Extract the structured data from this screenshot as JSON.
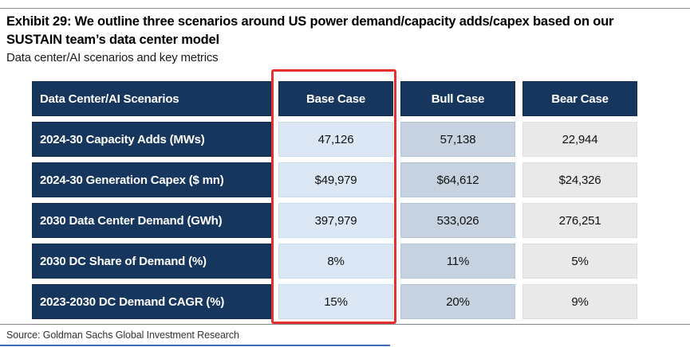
{
  "exhibit": {
    "title": "Exhibit 29: We outline three scenarios around US power demand/capacity adds/capex based on our SUSTAIN team’s data center model",
    "subtitle": "Data center/AI scenarios and key metrics",
    "source": "Source: Goldman Sachs Global Investment Research"
  },
  "chart_data": {
    "type": "table",
    "title": "Exhibit 29: We outline three scenarios around US power demand/capacity adds/capex based on our SUSTAIN team’s data center model",
    "subtitle": "Data center/AI scenarios and key metrics",
    "columns": [
      "Data Center/AI Scenarios",
      "Base Case",
      "Bull Case",
      "Bear Case"
    ],
    "rows": [
      [
        "2024-30 Capacity Adds (MWs)",
        "47,126",
        "57,138",
        "22,944"
      ],
      [
        "2024-30 Generation Capex ($ mn)",
        "$49,979",
        "$64,612",
        "$24,326"
      ],
      [
        "2030 Data Center Demand (GWh)",
        "397,979",
        "533,026",
        "276,251"
      ],
      [
        "2030 DC Share of Demand (%)",
        "8%",
        "11%",
        "5%"
      ],
      [
        "2023-2030 DC Demand CAGR (%)",
        "15%",
        "20%",
        "9%"
      ]
    ],
    "numeric_values": {
      "capacity_adds_mw_2024_30": {
        "base": 47126,
        "bull": 57138,
        "bear": 22944
      },
      "generation_capex_mn_2024_30": {
        "base": 49979,
        "bull": 64612,
        "bear": 24326
      },
      "dc_demand_gwh_2030": {
        "base": 397979,
        "bull": 533026,
        "bear": 276251
      },
      "dc_share_of_demand_pct_2030": {
        "base": 8,
        "bull": 11,
        "bear": 5
      },
      "dc_demand_cagr_pct_2023_2030": {
        "base": 15,
        "bull": 20,
        "bear": 9
      }
    },
    "highlighted_column": "Base Case",
    "source": "Source: Goldman Sachs Global Investment Research"
  },
  "colors": {
    "header_navy": "#17365d",
    "base_case_fill": "#dbe7f5",
    "bull_case_fill": "#c6d2e0",
    "bear_case_fill": "#e9e9e9",
    "highlight_red": "#e5312e",
    "footer_blue": "#3570b3",
    "rule_gray": "#8f8f8f"
  }
}
